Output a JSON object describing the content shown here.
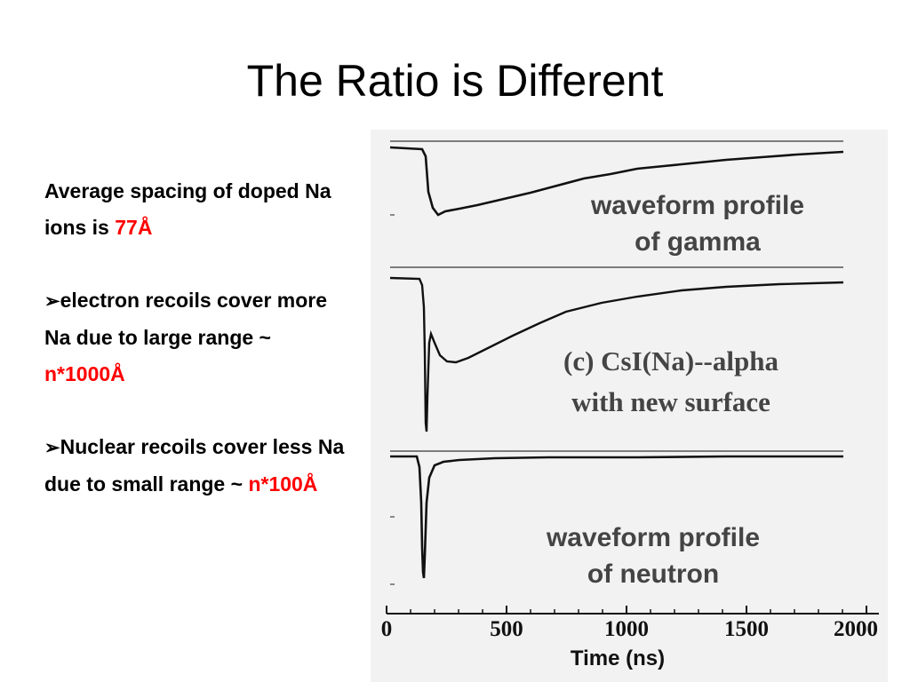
{
  "slide": {
    "title": "The Ratio is Different"
  },
  "bullets": {
    "intro_text": "Average spacing of doped Na ions is ",
    "intro_value": "77Å",
    "arrow_glyph": "➢",
    "electron_text": "electron recoils cover more Na due to large range ~ ",
    "electron_value": "n*1000Å",
    "nuclear_text": "Nuclear recoils cover less Na due to small range ~ ",
    "nuclear_value": "n*100Å",
    "highlight_color": "#ff0000"
  },
  "figure": {
    "panel_gamma_label_1": "waveform profile",
    "panel_gamma_label_2": "of gamma",
    "panel_alpha_label_1": "(c) CsI(Na)--alpha",
    "panel_alpha_label_2": "with new surface",
    "panel_neutron_label_1": "waveform profile",
    "panel_neutron_label_2": "of neutron",
    "x_axis_label": "Time (ns)",
    "x_ticks": [
      "0",
      "500",
      "1000",
      "1500",
      "2000"
    ]
  }
}
